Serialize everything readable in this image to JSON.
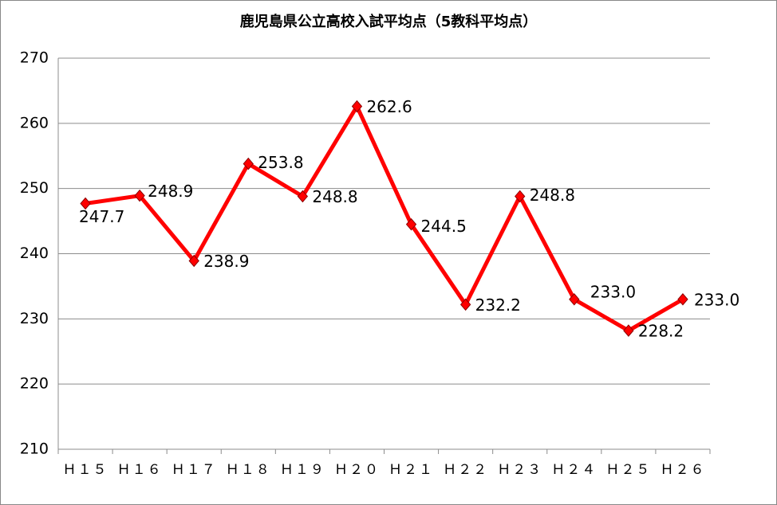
{
  "chart_data": {
    "type": "line",
    "title": "鹿児島県公立高校入試平均点（5教科平均点）",
    "categories": [
      "Ｈ１５",
      "Ｈ１６",
      "Ｈ１７",
      "Ｈ１８",
      "Ｈ１９",
      "Ｈ２０",
      "Ｈ２１",
      "Ｈ２２",
      "Ｈ２３",
      "Ｈ２４",
      "Ｈ２５",
      "Ｈ２６"
    ],
    "series": [
      {
        "name": "5教科平均点",
        "color": "#ff0000",
        "values": [
          247.7,
          248.9,
          238.9,
          253.8,
          248.8,
          262.6,
          244.5,
          232.2,
          248.8,
          233.0,
          228.2,
          233.0
        ],
        "value_labels": [
          "247.7",
          "248.9",
          "238.9",
          "253.8",
          "248.8",
          "262.6",
          "244.5",
          "232.2",
          "248.8",
          "233.0",
          "228.2",
          "233.0"
        ]
      }
    ],
    "ylim": [
      210,
      270
    ],
    "yticks": [
      210,
      220,
      230,
      240,
      250,
      260,
      270
    ],
    "grid": true
  }
}
